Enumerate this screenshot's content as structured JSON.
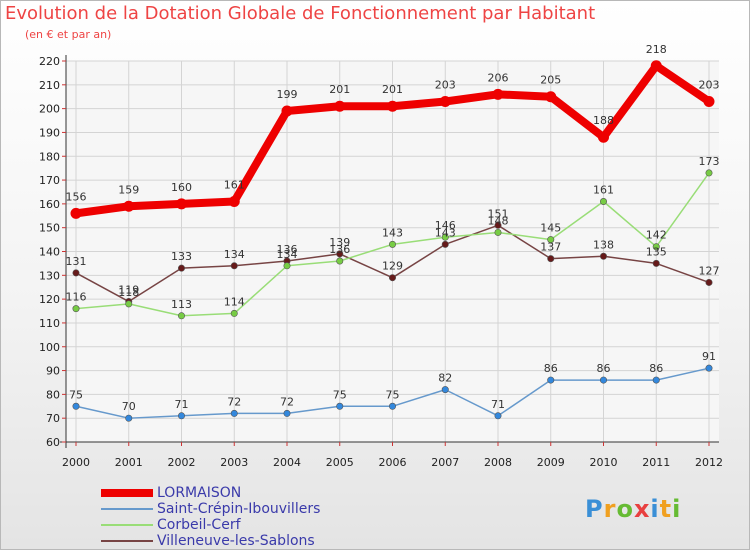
{
  "header": {
    "title": "Evolution de la Dotation Globale de Fonctionnement par Habitant",
    "subtitle": "(en € et par an)"
  },
  "logo": {
    "text": "Proxiti",
    "letters": [
      {
        "ch": "P",
        "color": "#3a8fd6"
      },
      {
        "ch": "r",
        "color": "#f0a020"
      },
      {
        "ch": "o",
        "color": "#66bb33"
      },
      {
        "ch": "x",
        "color": "#e84040"
      },
      {
        "ch": "i",
        "color": "#3a8fd6"
      },
      {
        "ch": "t",
        "color": "#f0a020"
      },
      {
        "ch": "i",
        "color": "#66bb33"
      }
    ]
  },
  "chart_data": {
    "type": "line",
    "title": "Evolution de la Dotation Globale de Fonctionnement par Habitant",
    "subtitle": "(en € et par an)",
    "xlabel": "",
    "ylabel": "",
    "x": [
      "2000",
      "2001",
      "2002",
      "2003",
      "2004",
      "2005",
      "2006",
      "2007",
      "2008",
      "2009",
      "2010",
      "2011",
      "2012"
    ],
    "ylim": [
      60,
      220
    ],
    "yticks": [
      60,
      70,
      80,
      90,
      100,
      110,
      120,
      130,
      140,
      150,
      160,
      170,
      180,
      190,
      200,
      210,
      220
    ],
    "grid": true,
    "legend_position": "bottom-left",
    "series": [
      {
        "name": "LORMAISON",
        "color": "#ee0000",
        "marker_fill": "#ee0000",
        "values": [
          156,
          159,
          160,
          161,
          199,
          201,
          201,
          203,
          206,
          205,
          188,
          218,
          203
        ]
      },
      {
        "name": "Saint-Crépin-Ibouvillers",
        "color": "#6699cc",
        "marker_fill": "#3388dd",
        "values": [
          75,
          70,
          71,
          72,
          72,
          75,
          75,
          82,
          71,
          86,
          86,
          86,
          91
        ]
      },
      {
        "name": "Corbeil-Cerf",
        "color": "#99dd77",
        "marker_fill": "#77cc44",
        "values": [
          116,
          118,
          113,
          114,
          134,
          136,
          143,
          146,
          148,
          145,
          161,
          142,
          173
        ]
      },
      {
        "name": "Villeneuve-les-Sablons",
        "color": "#774444",
        "marker_fill": "#661a1a",
        "values": [
          131,
          119,
          133,
          134,
          136,
          139,
          129,
          143,
          151,
          137,
          138,
          135,
          127
        ]
      }
    ]
  }
}
